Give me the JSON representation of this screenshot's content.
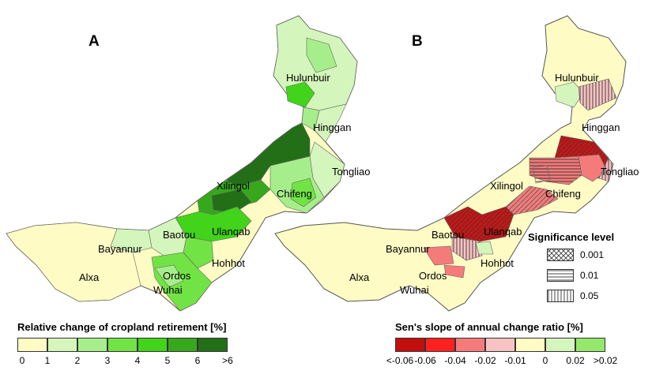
{
  "panels": {
    "a": {
      "letter": "A"
    },
    "b": {
      "letter": "B"
    }
  },
  "regions": [
    "Hulunbuir",
    "Hinggan",
    "Tongliao",
    "Xilingol",
    "Chifeng",
    "Ulanqab",
    "Baotou",
    "Bayannur",
    "Hohhot",
    "Alxa",
    "Ordos",
    "Wuhai"
  ],
  "legend_a": {
    "title": "Relative change of cropland retirement [%]",
    "colors": [
      "#fefcc4",
      "#d4f5bb",
      "#a6ee8b",
      "#72e345",
      "#41d41a",
      "#37a81c",
      "#236f18"
    ],
    "ticks": [
      "0",
      "1",
      "2",
      "3",
      "4",
      "5",
      "6",
      ">6"
    ]
  },
  "legend_b": {
    "title": "Sen's slope of annual change ratio [%]",
    "colors": [
      "#c20e0e",
      "#ff2020",
      "#f57a7a",
      "#f9c3c3",
      "#fefcc4",
      "#d4f5bb",
      "#94e86c"
    ],
    "ticks": [
      "<-0.06",
      "-0.06",
      "-0.04",
      "-0.02",
      "-0.01",
      "0",
      "0.02",
      ">0.02"
    ]
  },
  "significance": {
    "title": "Significance level",
    "items": [
      {
        "label": "0.001",
        "pattern": "cross-hatch"
      },
      {
        "label": "0.01",
        "pattern": "horizontal-lines"
      },
      {
        "label": "0.05",
        "pattern": "vertical-lines"
      }
    ]
  }
}
